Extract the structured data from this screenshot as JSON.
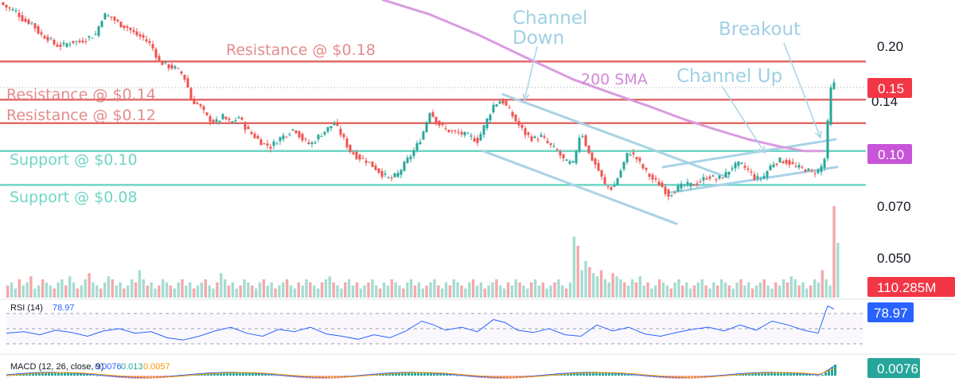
{
  "chart_data": {
    "type": "candlestick",
    "title": "",
    "price_axis": {
      "scale": "log",
      "ticks": [
        0.2,
        0.14,
        0.07,
        0.05
      ],
      "tick_labels": [
        "0.20",
        "0.14",
        "0.070",
        "0.050"
      ],
      "range": [
        0.045,
        0.27
      ]
    },
    "levels": [
      {
        "label": "Resistance @ $0.18",
        "value": 0.18,
        "color": "#e06b6b",
        "text_color": "#e58c8c"
      },
      {
        "label": "Resistance @ $0.14",
        "value": 0.14,
        "color": "#e06b6b",
        "text_color": "#e58c8c"
      },
      {
        "label": "Resistance @ $0.12",
        "value": 0.12,
        "color": "#e06b6b",
        "text_color": "#e58c8c"
      },
      {
        "label": "Support @ $0.10",
        "value": 0.1,
        "color": "#6fd6c3",
        "text_color": "#6fd6c3"
      },
      {
        "label": "Support @ $0.08",
        "value": 0.08,
        "color": "#6fd6c3",
        "text_color": "#6fd6c3"
      }
    ],
    "annotations": [
      {
        "label": "Channel",
        "color": "#9fd0e4"
      },
      {
        "label": "Down",
        "color": "#9fd0e4"
      },
      {
        "label": "200 SMA",
        "color": "#d18ad8"
      },
      {
        "label": "Channel Up",
        "color": "#9fd0e4"
      },
      {
        "label": "Breakout",
        "color": "#9fd0e4"
      }
    ],
    "price_badges": [
      {
        "label": "0.15",
        "color": "#f23645"
      },
      {
        "label": "0.10",
        "color": "#c855d8"
      }
    ],
    "sma_color": "#d99be0",
    "up_color": "#26a69a",
    "down_color": "#ef5350",
    "candle_points": [
      [
        0,
        0.265
      ],
      [
        10,
        0.255
      ],
      [
        20,
        0.25
      ],
      [
        30,
        0.235
      ],
      [
        40,
        0.232
      ],
      [
        50,
        0.215
      ],
      [
        60,
        0.21
      ],
      [
        70,
        0.2
      ],
      [
        80,
        0.2
      ],
      [
        90,
        0.205
      ],
      [
        100,
        0.205
      ],
      [
        110,
        0.21
      ],
      [
        120,
        0.215
      ],
      [
        130,
        0.245
      ],
      [
        140,
        0.24
      ],
      [
        150,
        0.23
      ],
      [
        160,
        0.225
      ],
      [
        170,
        0.215
      ],
      [
        180,
        0.21
      ],
      [
        190,
        0.2
      ],
      [
        200,
        0.18
      ],
      [
        210,
        0.175
      ],
      [
        220,
        0.172
      ],
      [
        230,
        0.165
      ],
      [
        235,
        0.155
      ],
      [
        240,
        0.14
      ],
      [
        250,
        0.135
      ],
      [
        260,
        0.125
      ],
      [
        270,
        0.12
      ],
      [
        280,
        0.125
      ],
      [
        290,
        0.12
      ],
      [
        300,
        0.125
      ],
      [
        310,
        0.115
      ],
      [
        320,
        0.11
      ],
      [
        330,
        0.105
      ],
      [
        340,
        0.103
      ],
      [
        350,
        0.108
      ],
      [
        360,
        0.112
      ],
      [
        370,
        0.116
      ],
      [
        380,
        0.108
      ],
      [
        390,
        0.104
      ],
      [
        400,
        0.11
      ],
      [
        410,
        0.115
      ],
      [
        420,
        0.12
      ],
      [
        430,
        0.11
      ],
      [
        440,
        0.1
      ],
      [
        450,
        0.096
      ],
      [
        460,
        0.094
      ],
      [
        470,
        0.09
      ],
      [
        480,
        0.086
      ],
      [
        490,
        0.083
      ],
      [
        500,
        0.086
      ],
      [
        510,
        0.093
      ],
      [
        520,
        0.1
      ],
      [
        530,
        0.11
      ],
      [
        540,
        0.13
      ],
      [
        550,
        0.12
      ],
      [
        560,
        0.115
      ],
      [
        570,
        0.113
      ],
      [
        580,
        0.112
      ],
      [
        590,
        0.11
      ],
      [
        600,
        0.107
      ],
      [
        610,
        0.12
      ],
      [
        620,
        0.135
      ],
      [
        630,
        0.14
      ],
      [
        640,
        0.13
      ],
      [
        650,
        0.12
      ],
      [
        660,
        0.112
      ],
      [
        670,
        0.108
      ],
      [
        680,
        0.11
      ],
      [
        690,
        0.104
      ],
      [
        700,
        0.1
      ],
      [
        710,
        0.093
      ],
      [
        720,
        0.092
      ],
      [
        730,
        0.115
      ],
      [
        740,
        0.098
      ],
      [
        750,
        0.09
      ],
      [
        760,
        0.08
      ],
      [
        770,
        0.078
      ],
      [
        780,
        0.088
      ],
      [
        790,
        0.1
      ],
      [
        800,
        0.095
      ],
      [
        810,
        0.088
      ],
      [
        820,
        0.083
      ],
      [
        830,
        0.08
      ],
      [
        840,
        0.075
      ],
      [
        850,
        0.078
      ],
      [
        860,
        0.08
      ],
      [
        870,
        0.08
      ],
      [
        880,
        0.082
      ],
      [
        890,
        0.085
      ],
      [
        900,
        0.083
      ],
      [
        910,
        0.085
      ],
      [
        920,
        0.09
      ],
      [
        930,
        0.092
      ],
      [
        940,
        0.088
      ],
      [
        950,
        0.083
      ],
      [
        960,
        0.085
      ],
      [
        970,
        0.092
      ],
      [
        980,
        0.094
      ],
      [
        990,
        0.093
      ],
      [
        1000,
        0.09
      ],
      [
        1010,
        0.089
      ],
      [
        1020,
        0.087
      ],
      [
        1030,
        0.088
      ],
      [
        1036,
        0.095
      ],
      [
        1040,
        0.12
      ],
      [
        1044,
        0.15
      ],
      [
        1048,
        0.155
      ]
    ],
    "sma_points": [
      [
        480,
        0.27
      ],
      [
        540,
        0.245
      ],
      [
        600,
        0.215
      ],
      [
        660,
        0.185
      ],
      [
        720,
        0.16
      ],
      [
        780,
        0.143
      ],
      [
        820,
        0.133
      ],
      [
        860,
        0.123
      ],
      [
        900,
        0.115
      ],
      [
        940,
        0.108
      ],
      [
        980,
        0.103
      ],
      [
        1010,
        0.1
      ],
      [
        1035,
        0.1
      ]
    ],
    "channel_down": [
      [
        [
          608,
          0.104
        ],
        [
          728,
          0.124
        ],
        [
          915,
          0.084
        ]
      ],
      [
        [
          607,
          0.1
        ],
        [
          850,
          0.062
        ],
        [
          728,
          0.079
        ]
      ]
    ],
    "channel_down_lines": [
      [
        [
          632,
          0.145
        ],
        [
          915,
          0.084
        ]
      ],
      [
        [
          607,
          0.1
        ],
        [
          850,
          0.062
        ]
      ]
    ],
    "channel_up_lines": [
      [
        [
          833,
          0.09
        ],
        [
          1050,
          0.108
        ]
      ],
      [
        [
          840,
          0.076
        ],
        [
          1052,
          0.09
        ]
      ]
    ],
    "volume": {
      "badge": "110.285M",
      "badge_color": "#f23645",
      "bars": [
        4,
        5,
        3,
        6,
        4,
        5,
        7,
        3,
        4,
        6,
        5,
        4,
        3,
        5,
        6,
        4,
        7,
        5,
        3,
        4,
        6,
        8,
        5,
        4,
        3,
        5,
        7,
        6,
        4,
        5,
        3,
        4,
        6,
        5,
        9,
        6,
        4,
        5,
        3,
        4,
        6,
        5,
        4,
        3,
        5,
        6,
        4,
        5,
        3,
        4,
        5,
        6,
        4,
        3,
        5,
        8,
        6,
        4,
        5,
        3,
        4,
        6,
        5,
        4,
        3,
        5,
        6,
        4,
        5,
        3,
        4,
        5,
        6,
        4,
        3,
        5,
        4,
        6,
        5,
        4,
        3,
        5,
        6,
        7,
        5,
        4,
        3,
        5,
        6,
        4,
        5,
        3,
        4,
        5,
        6,
        4,
        3,
        5,
        4,
        6,
        5,
        4,
        3,
        5,
        6,
        4,
        5,
        3,
        4,
        5,
        6,
        4,
        3,
        5,
        4,
        6,
        5,
        4,
        3,
        5,
        6,
        4,
        5,
        3,
        4,
        5,
        6,
        4,
        3,
        5,
        4,
        6,
        5,
        4,
        3,
        5,
        6,
        4,
        5,
        3,
        4,
        5,
        6,
        4,
        3,
        5,
        20,
        17,
        9,
        12,
        10,
        8,
        7,
        9,
        6,
        5,
        8,
        7,
        6,
        5,
        4,
        6,
        5,
        7,
        4,
        5,
        3,
        4,
        6,
        5,
        4,
        3,
        5,
        6,
        4,
        5,
        3,
        4,
        5,
        6,
        4,
        3,
        5,
        4,
        6,
        5,
        4,
        3,
        5,
        6,
        4,
        5,
        3,
        4,
        5,
        6,
        4,
        3,
        5,
        4,
        6,
        5,
        7,
        6,
        4,
        5,
        3,
        4,
        6,
        5,
        9,
        6,
        4,
        30,
        18
      ]
    },
    "rsi": {
      "label": "RSI (14)",
      "value": "78.97",
      "badge": "78.97",
      "badge_color": "#2962ff",
      "line_color": "#2962ff",
      "levels": [
        70,
        50,
        30
      ],
      "points": [
        [
          8,
          44
        ],
        [
          30,
          46
        ],
        [
          50,
          42
        ],
        [
          70,
          48
        ],
        [
          90,
          45
        ],
        [
          110,
          40
        ],
        [
          130,
          47
        ],
        [
          150,
          50
        ],
        [
          170,
          44
        ],
        [
          190,
          46
        ],
        [
          210,
          38
        ],
        [
          230,
          35
        ],
        [
          250,
          40
        ],
        [
          270,
          47
        ],
        [
          290,
          52
        ],
        [
          310,
          44
        ],
        [
          330,
          40
        ],
        [
          350,
          49
        ],
        [
          370,
          46
        ],
        [
          390,
          52
        ],
        [
          410,
          43
        ],
        [
          430,
          40
        ],
        [
          450,
          36
        ],
        [
          470,
          42
        ],
        [
          490,
          38
        ],
        [
          510,
          47
        ],
        [
          530,
          60
        ],
        [
          545,
          55
        ],
        [
          560,
          48
        ],
        [
          580,
          52
        ],
        [
          600,
          46
        ],
        [
          620,
          62
        ],
        [
          635,
          58
        ],
        [
          650,
          48
        ],
        [
          670,
          45
        ],
        [
          690,
          50
        ],
        [
          710,
          42
        ],
        [
          730,
          40
        ],
        [
          750,
          55
        ],
        [
          770,
          47
        ],
        [
          790,
          52
        ],
        [
          810,
          43
        ],
        [
          830,
          40
        ],
        [
          850,
          45
        ],
        [
          870,
          49
        ],
        [
          890,
          52
        ],
        [
          910,
          47
        ],
        [
          930,
          55
        ],
        [
          950,
          48
        ],
        [
          970,
          60
        ],
        [
          990,
          55
        ],
        [
          1010,
          48
        ],
        [
          1028,
          44
        ],
        [
          1040,
          80
        ],
        [
          1048,
          76
        ]
      ]
    },
    "macd": {
      "label": "MACD (12, 26, close, 9)",
      "values": [
        "0.0076",
        "0.013",
        "0.0057"
      ],
      "value_colors": [
        "#2962ff",
        "#26a69a",
        "#ff9800"
      ],
      "badge": "0.0076",
      "badge_color": "#26a69a"
    }
  }
}
